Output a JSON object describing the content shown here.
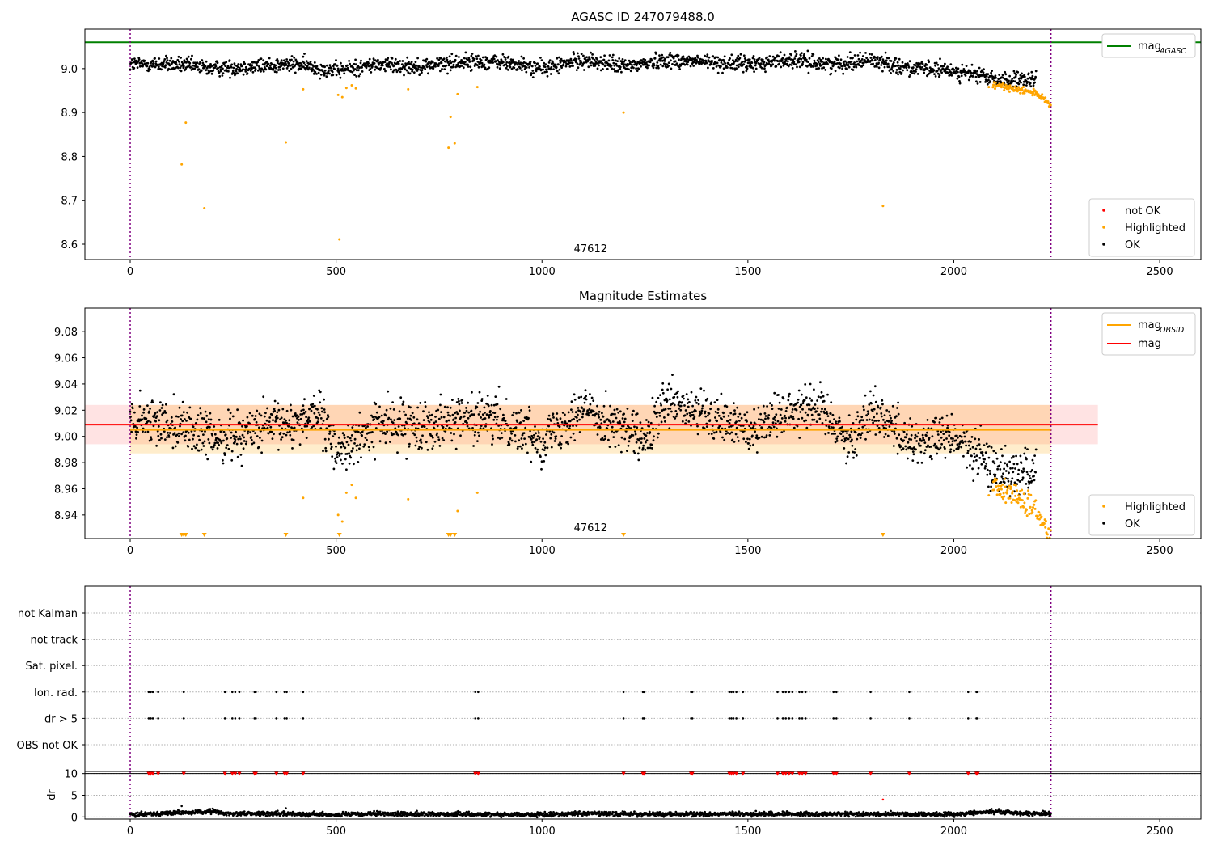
{
  "chart_data": [
    {
      "type": "scatter",
      "title": "AGASC ID 247079488.0",
      "annotation": "47612",
      "xlim": [
        -110,
        2600
      ],
      "ylim": [
        8.565,
        9.09
      ],
      "xticks": [
        0,
        500,
        1000,
        1500,
        2000,
        2500
      ],
      "xtick_labels": [
        "0",
        "500",
        "1000",
        "1500",
        "2000",
        "2500"
      ],
      "yticks": [
        8.6,
        8.7,
        8.8,
        8.9,
        9.0
      ],
      "ytick_labels": [
        "8.6",
        "8.7",
        "8.8",
        "8.9",
        "9.0"
      ],
      "hlines": [
        {
          "name": "mag_AGASC",
          "y": 9.06,
          "color": "#008000"
        }
      ],
      "vlines": [
        0,
        2236
      ],
      "series": [
        {
          "name": "OK",
          "color": "#000000",
          "trend": [
            [
              0,
              9.01
            ],
            [
              100,
              9.01
            ],
            [
              200,
              9.0
            ],
            [
              300,
              9.005
            ],
            [
              400,
              9.01
            ],
            [
              500,
              8.995
            ],
            [
              600,
              9.01
            ],
            [
              700,
              9.005
            ],
            [
              800,
              9.015
            ],
            [
              900,
              9.015
            ],
            [
              1000,
              9.0
            ],
            [
              1100,
              9.02
            ],
            [
              1200,
              9.005
            ],
            [
              1300,
              9.02
            ],
            [
              1400,
              9.015
            ],
            [
              1500,
              9.01
            ],
            [
              1600,
              9.02
            ],
            [
              1700,
              9.01
            ],
            [
              1800,
              9.02
            ],
            [
              1900,
              9.0
            ],
            [
              2000,
              8.995
            ],
            [
              2060,
              8.985
            ],
            [
              2100,
              8.975
            ],
            [
              2200,
              8.972
            ]
          ]
        },
        {
          "name": "Highlighted",
          "color": "#ffa500",
          "points": [
            [
              125,
              8.782
            ],
            [
              135,
              8.877
            ],
            [
              180,
              8.682
            ],
            [
              378,
              8.832
            ],
            [
              420,
              8.953
            ],
            [
              505,
              8.94
            ],
            [
              508,
              8.611
            ],
            [
              515,
              8.935
            ],
            [
              525,
              8.956
            ],
            [
              538,
              8.962
            ],
            [
              548,
              8.955
            ],
            [
              675,
              8.953
            ],
            [
              773,
              8.82
            ],
            [
              778,
              8.89
            ],
            [
              788,
              8.83
            ],
            [
              795,
              8.942
            ],
            [
              843,
              8.958
            ],
            [
              1198,
              8.9
            ],
            [
              1828,
              8.687
            ],
            [
              2085,
              8.958
            ]
          ],
          "tail": [
            [
              2100,
              8.962
            ],
            [
              2150,
              8.955
            ],
            [
              2200,
              8.945
            ],
            [
              2236,
              8.915
            ]
          ]
        },
        {
          "name": "not OK",
          "color": "#ff0000",
          "points": []
        }
      ],
      "legend": {
        "placement": "lower right",
        "entries": [
          "not OK",
          "Highlighted",
          "OK"
        ]
      },
      "line_legend": {
        "placement": "upper right",
        "entries": [
          {
            "label": "mag",
            "sub": "AGASC",
            "color": "#008000"
          }
        ]
      }
    },
    {
      "type": "scatter",
      "title": "Magnitude Estimates",
      "annotation": "47612",
      "xlim": [
        -110,
        2600
      ],
      "ylim": [
        8.922,
        9.098
      ],
      "xticks": [
        0,
        500,
        1000,
        1500,
        2000,
        2500
      ],
      "xtick_labels": [
        "0",
        "500",
        "1000",
        "1500",
        "2000",
        "2500"
      ],
      "yticks": [
        8.94,
        8.96,
        8.98,
        9.0,
        9.02,
        9.04,
        9.06,
        9.08
      ],
      "ytick_labels": [
        "8.94",
        "8.96",
        "8.98",
        "9.00",
        "9.02",
        "9.04",
        "9.06",
        "9.08"
      ],
      "lines": [
        {
          "name": "mag_OBSID",
          "y": 9.005,
          "x": [
            0,
            2236
          ],
          "color": "#ffa500",
          "band": [
            8.987,
            9.024
          ]
        },
        {
          "name": "mag",
          "y": 9.009,
          "x": [
            -110,
            2350
          ],
          "color": "#ff0000",
          "band": [
            8.994,
            9.024
          ]
        }
      ],
      "vlines": [
        0,
        2236
      ],
      "series": [
        {
          "name": "OK",
          "color": "#000000",
          "trend": [
            [
              0,
              9.01
            ],
            [
              100,
              9.012
            ],
            [
              200,
              8.998
            ],
            [
              300,
              9.005
            ],
            [
              400,
              9.01
            ],
            [
              450,
              9.02
            ],
            [
              500,
              8.99
            ],
            [
              550,
              8.995
            ],
            [
              600,
              9.01
            ],
            [
              700,
              9.008
            ],
            [
              800,
              9.015
            ],
            [
              900,
              9.012
            ],
            [
              1000,
              8.998
            ],
            [
              1100,
              9.022
            ],
            [
              1200,
              9.005
            ],
            [
              1250,
              8.995
            ],
            [
              1300,
              9.025
            ],
            [
              1400,
              9.015
            ],
            [
              1500,
              9.005
            ],
            [
              1600,
              9.02
            ],
            [
              1650,
              9.025
            ],
            [
              1700,
              9.015
            ],
            [
              1750,
              8.995
            ],
            [
              1800,
              9.022
            ],
            [
              1900,
              8.995
            ],
            [
              2000,
              9.0
            ],
            [
              2060,
              8.985
            ],
            [
              2100,
              8.975
            ],
            [
              2200,
              8.972
            ]
          ]
        },
        {
          "name": "Highlighted",
          "color": "#ffa500",
          "points": [
            [
              420,
              8.953
            ],
            [
              505,
              8.94
            ],
            [
              515,
              8.935
            ],
            [
              525,
              8.957
            ],
            [
              538,
              8.963
            ],
            [
              548,
              8.953
            ],
            [
              675,
              8.952
            ],
            [
              795,
              8.943
            ],
            [
              843,
              8.957
            ],
            [
              2085,
              8.955
            ]
          ],
          "tail": [
            [
              2100,
              8.96
            ],
            [
              2150,
              8.955
            ],
            [
              2200,
              8.942
            ],
            [
              2236,
              8.923
            ]
          ]
        }
      ],
      "below_range_markers": [
        125,
        130,
        135,
        180,
        378,
        508,
        773,
        778,
        788,
        1198,
        1828
      ],
      "legend": {
        "placement": "lower right",
        "entries": [
          "Highlighted",
          "OK"
        ]
      },
      "line_legend": {
        "placement": "upper right",
        "entries": [
          {
            "label": "mag",
            "sub": "OBSID",
            "color": "#ffa500"
          },
          {
            "label": "mag",
            "sub": "",
            "color": "#ff0000"
          }
        ]
      }
    },
    {
      "type": "scatter",
      "title": "",
      "xlim": [
        -110,
        2600
      ],
      "categories": [
        "not Kalman",
        "not track",
        "Sat. pixel.",
        "Ion. rad.",
        "dr > 5",
        "OBS not OK"
      ],
      "flag_x": [
        45,
        50,
        55,
        68,
        130,
        230,
        248,
        255,
        265,
        302,
        305,
        355,
        375,
        380,
        420,
        838,
        845,
        1198,
        1245,
        1248,
        1362,
        1365,
        1455,
        1460,
        1465,
        1472,
        1488,
        1572,
        1585,
        1592,
        1600,
        1608,
        1625,
        1632,
        1640,
        1708,
        1715,
        1798,
        1892,
        2035,
        2055,
        2058
      ],
      "flag_rows": [
        "Ion. rad.",
        "dr > 5"
      ],
      "dr_panel": {
        "ylabel": "dr",
        "yticks": [
          0,
          5,
          10
        ],
        "ytick_labels": [
          "0",
          "5",
          "10"
        ],
        "ylim": [
          -0.5,
          10.5
        ],
        "threshold_line": 10,
        "trend": [
          [
            0,
            0.6
          ],
          [
            175,
            1.1
          ],
          [
            200,
            1.4
          ],
          [
            220,
            0.8
          ],
          [
            400,
            0.7
          ],
          [
            500,
            0.5
          ],
          [
            600,
            0.7
          ],
          [
            900,
            0.6
          ],
          [
            1000,
            0.5
          ],
          [
            1100,
            0.8
          ],
          [
            1300,
            0.6
          ],
          [
            1600,
            0.7
          ],
          [
            2000,
            0.6
          ],
          [
            2100,
            1.3
          ],
          [
            2150,
            0.9
          ],
          [
            2236,
            0.7
          ]
        ],
        "outliers": [
          [
            125,
            2.5
          ],
          [
            378,
            2.0
          ],
          [
            1828,
            4.0
          ]
        ],
        "capped_color": "#ff0000"
      }
    }
  ]
}
